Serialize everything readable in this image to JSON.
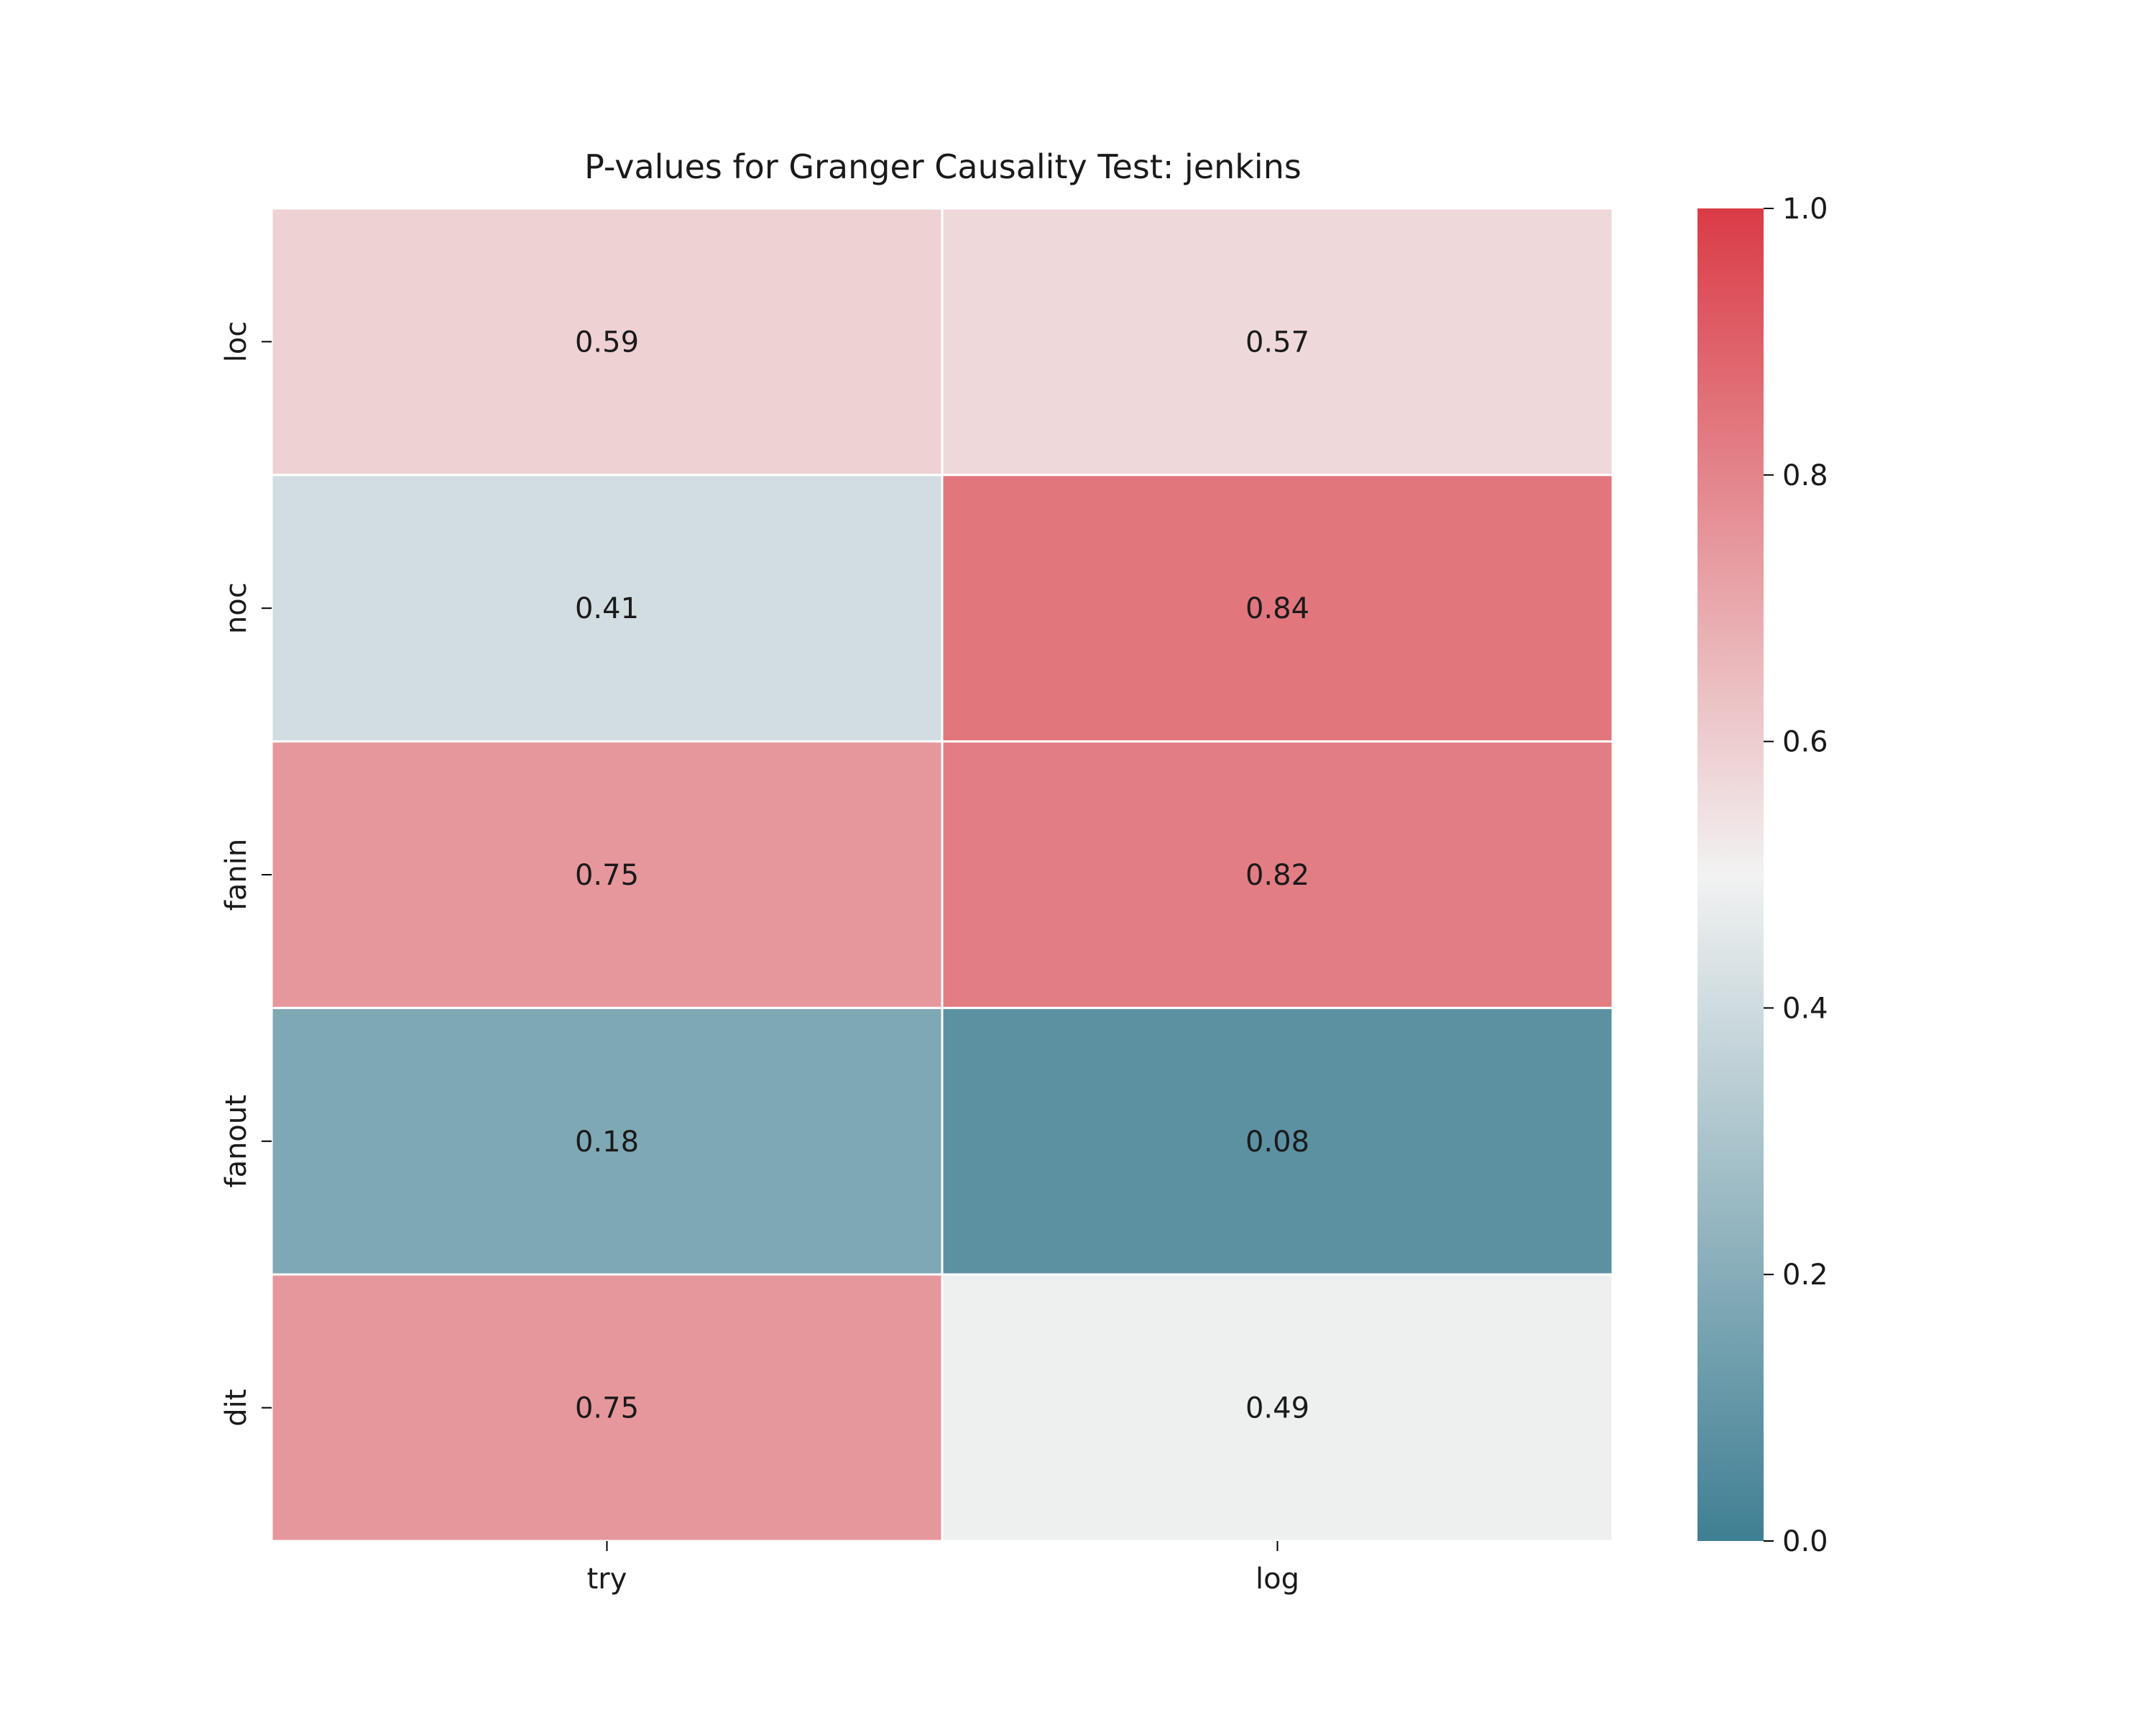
{
  "chart_data": {
    "type": "heatmap",
    "title": "P-values for Granger Causality Test: jenkins",
    "xlabel": "",
    "ylabel": "",
    "x_categories": [
      "try",
      "log"
    ],
    "y_categories": [
      "loc",
      "noc",
      "fanin",
      "fanout",
      "dit"
    ],
    "values": [
      [
        0.59,
        0.57
      ],
      [
        0.41,
        0.84
      ],
      [
        0.75,
        0.82
      ],
      [
        0.18,
        0.08
      ],
      [
        0.75,
        0.49
      ]
    ],
    "value_labels": [
      [
        "0.59",
        "0.57"
      ],
      [
        "0.41",
        "0.84"
      ],
      [
        "0.75",
        "0.82"
      ],
      [
        "0.18",
        "0.08"
      ],
      [
        "0.75",
        "0.49"
      ]
    ],
    "colorbar": {
      "vmin": 0.0,
      "vmax": 1.0,
      "ticks": [
        "0.0",
        "0.2",
        "0.4",
        "0.6",
        "0.8",
        "1.0"
      ],
      "colormap": "diverging blue-white-red",
      "low_color": "#3f7f93",
      "mid_color": "#f2f2f2",
      "high_color": "#da3b46"
    },
    "grid": false,
    "cell_border_color": "#ffffff"
  }
}
